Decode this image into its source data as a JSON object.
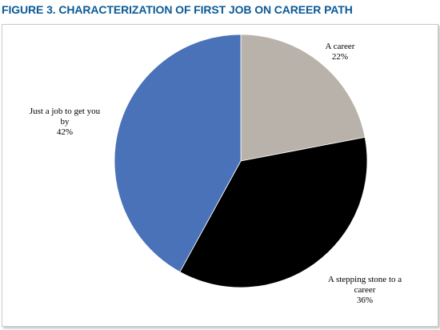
{
  "figure": {
    "title": "FIGURE 3. CHARACTERIZATION OF FIRST JOB ON CAREER PATH"
  },
  "colors": {
    "title": "#0a5a96",
    "slice_a_career": "#b8b2aa",
    "slice_stepping_stone": "#000000",
    "slice_just_a_job": "#4a72b8"
  },
  "chart_data": {
    "type": "pie",
    "title": "FIGURE 3. CHARACTERIZATION OF FIRST JOB ON CAREER PATH",
    "start_angle_deg": 0,
    "direction": "clockwise",
    "legend": "none",
    "slices": [
      {
        "name": "A career",
        "value": 22,
        "label_lines": [
          "A career",
          "22%"
        ],
        "color": "#b8b2aa"
      },
      {
        "name": "A stepping stone to a career",
        "value": 36,
        "label_lines": [
          "A stepping stone to a",
          "career",
          "36%"
        ],
        "color": "#000000"
      },
      {
        "name": "Just a job to get you by",
        "value": 42,
        "label_lines": [
          "Just a job to get you",
          "by",
          "42%"
        ],
        "color": "#4a72b8"
      }
    ]
  }
}
